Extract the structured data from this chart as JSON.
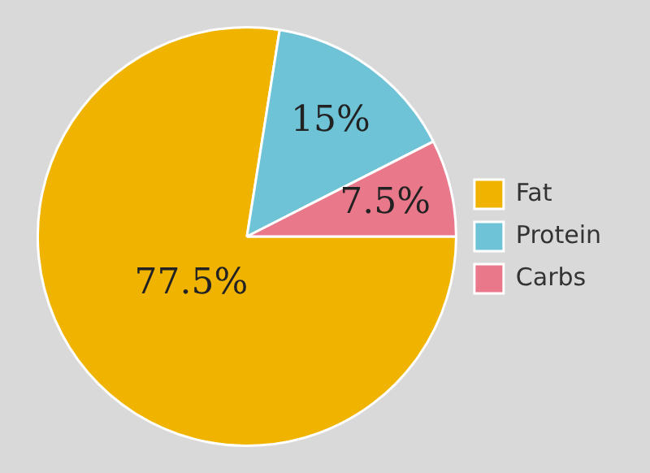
{
  "chart_data": {
    "type": "pie",
    "categories": [
      "Fat",
      "Protein",
      "Carbs"
    ],
    "values": [
      77.5,
      15,
      7.5
    ],
    "colors": [
      "#f0b400",
      "#6ec3d7",
      "#e9798a"
    ],
    "value_labels": [
      "77.5%",
      "15%",
      "7.5%"
    ],
    "legend": "right"
  }
}
